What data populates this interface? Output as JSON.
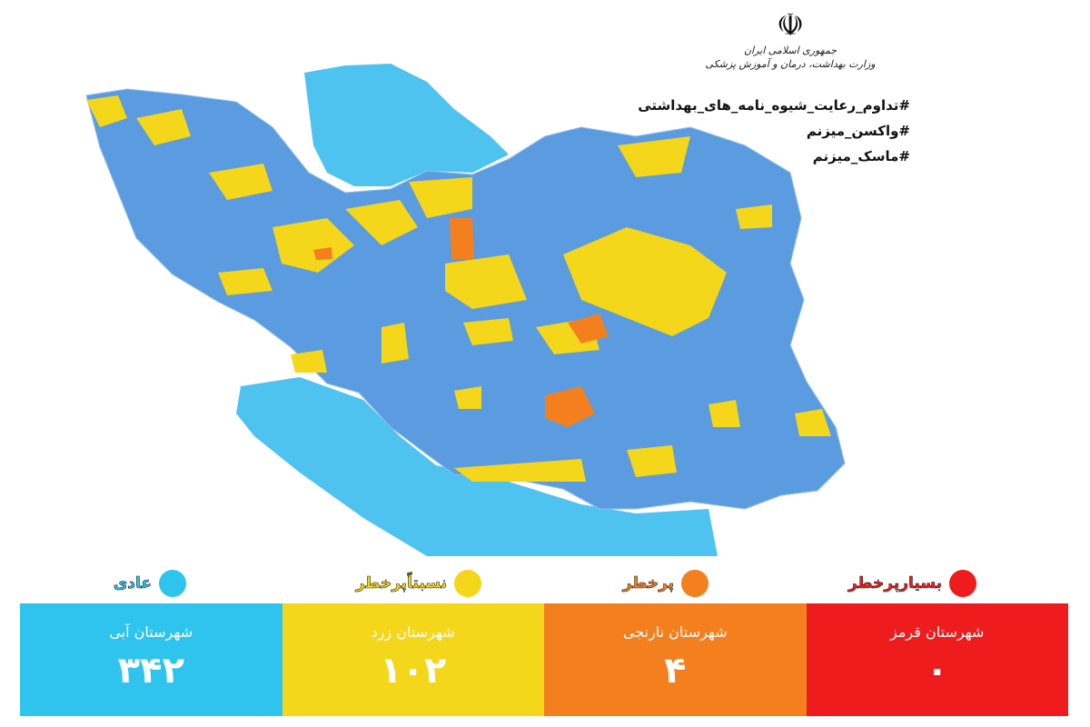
{
  "header": {
    "emblem": "☫",
    "org_line1": "جمهوری اسلامی ایران",
    "org_line2": "وزارت بهداشت، درمان و آموزش پزشکی"
  },
  "hashtags": [
    "#تداوم_رعایت_شیوه_نامه_های_بهداشتی",
    "#واکسن_میزنم",
    "#ماسک_میزنم"
  ],
  "legend": [
    {
      "label": "بسیارپرخطر",
      "color": "#ee1c1c"
    },
    {
      "label": "پرخطر",
      "color": "#f47f1f"
    },
    {
      "label": "نسبتاًپرخطر",
      "color": "#f4d61a"
    },
    {
      "label": "عادی",
      "color": "#2ec4ee"
    }
  ],
  "counts": [
    {
      "title": "شهرستان آبی",
      "value": "۳۴۲",
      "color": "#2ec4ee"
    },
    {
      "title": "شهرستان زرد",
      "value": "۱۰۲",
      "color": "#f4d61a"
    },
    {
      "title": "شهرستان نارنجی",
      "value": "۴",
      "color": "#f47f1f"
    },
    {
      "title": "شهرستان قرمز",
      "value": "۰",
      "color": "#ee1c1c"
    }
  ],
  "map_colors": {
    "water": "#4fc3f0",
    "blue_county": "#5b9ce0",
    "yellow_county": "#f4d61a",
    "orange_county": "#f47f1f"
  }
}
